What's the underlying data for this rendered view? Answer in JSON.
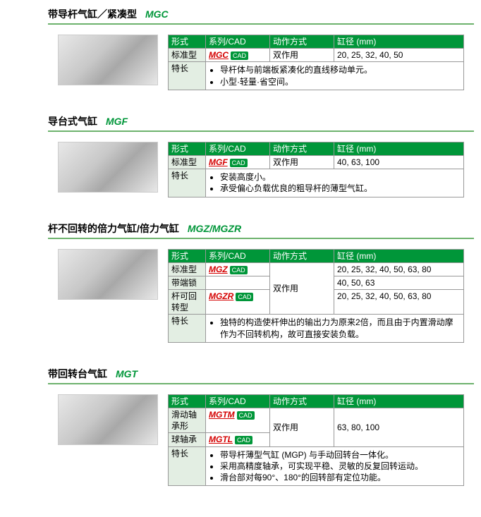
{
  "headers": {
    "type": "形式",
    "series": "系列/CAD",
    "op": "动作方式",
    "bore": "缸径 (mm)",
    "feature": "特长"
  },
  "cad_label": "CAD",
  "sections": [
    {
      "title_cn": "带导杆气缸／紧凑型",
      "title_code": "MGC",
      "rows": [
        {
          "type": "标准型",
          "series": "MGC",
          "cad": true,
          "op": "双作用",
          "bore": "20, 25, 32, 40, 50"
        }
      ],
      "features": [
        "导杆体与前端板紧凑化的直线移动单元。",
        "小型·轻量·省空间。"
      ]
    },
    {
      "title_cn": "导台式气缸",
      "title_code": "MGF",
      "rows": [
        {
          "type": "标准型",
          "series": "MGF",
          "cad": true,
          "op": "双作用",
          "bore": "40, 63, 100"
        }
      ],
      "features": [
        "安装高度小。",
        "承受偏心负载优良的粗导杆的薄型气缸。"
      ]
    },
    {
      "title_cn": "杆不回转的倍力气缸/倍力气缸",
      "title_code": "MGZ/MGZR",
      "rows": [
        {
          "type": "标准型",
          "series": "MGZ",
          "cad": true,
          "op": "双作用",
          "bore": "20, 25, 32, 40, 50, 63, 80",
          "op_rowspan": 3
        },
        {
          "type": "带端锁",
          "series": "",
          "cad": false,
          "op": "",
          "bore": "40, 50, 63"
        },
        {
          "type": "杆可回转型",
          "series": "MGZR",
          "cad": true,
          "op": "",
          "bore": "20, 25, 32, 40, 50, 63, 80"
        }
      ],
      "features": [
        "独特的构造使杆伸出的输出力为原来2倍，而且由于内置滑动摩作为不回转机构，故可直接安装负载。"
      ]
    },
    {
      "title_cn": "带回转台气缸",
      "title_code": "MGT",
      "rows": [
        {
          "type": "滑动轴承形",
          "series": "MGTM",
          "cad": true,
          "op": "双作用",
          "bore": "63, 80, 100",
          "op_rowspan": 2,
          "bore_rowspan": 2
        },
        {
          "type": "球轴承",
          "series": "MGTL",
          "cad": true,
          "op": "",
          "bore": ""
        }
      ],
      "features": [
        "带导杆薄型气缸 (MGP) 与手动回转台一体化。",
        "采用高精度轴承，可实现平稳、灵敏的反复回转运动。",
        "滑台部对每90°、180°的回转部有定位功能。"
      ]
    }
  ]
}
